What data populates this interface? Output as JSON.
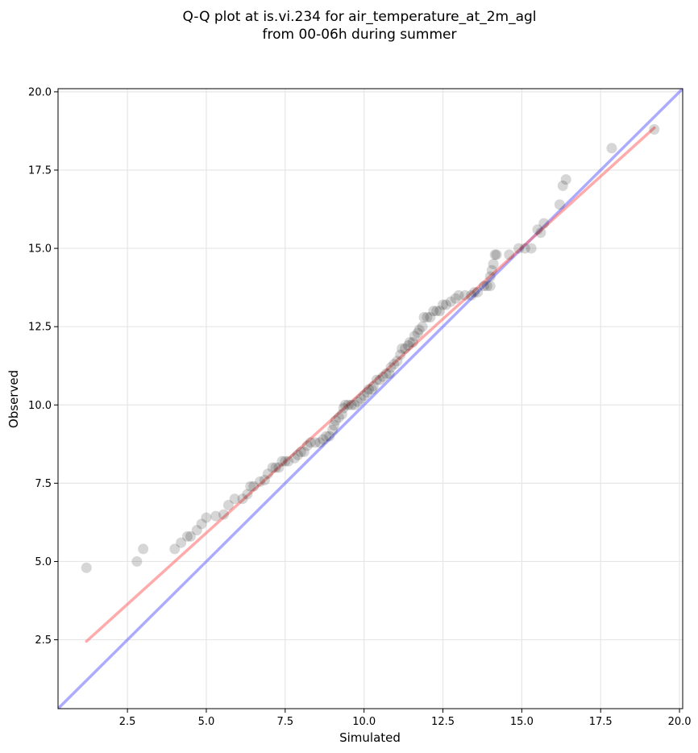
{
  "chart_data": {
    "type": "scatter",
    "title": [
      "Q-Q plot at is.vi.234 for air_temperature_at_2m_agl",
      "from 00-06h during summer"
    ],
    "xlabel": "Simulated",
    "ylabel": "Observed",
    "xlim": [
      0.3,
      20.1
    ],
    "ylim": [
      0.3,
      20.1
    ],
    "xticks": [
      2.5,
      5.0,
      7.5,
      10.0,
      12.5,
      15.0,
      17.5,
      20.0
    ],
    "yticks": [
      2.5,
      5.0,
      7.5,
      10.0,
      12.5,
      15.0,
      17.5,
      20.0
    ],
    "xtick_labels": [
      "2.5",
      "5.0",
      "7.5",
      "10.0",
      "12.5",
      "15.0",
      "17.5",
      "20.0"
    ],
    "ytick_labels": [
      "2.5",
      "5.0",
      "7.5",
      "10.0",
      "12.5",
      "15.0",
      "17.5",
      "20.0"
    ],
    "grid": true,
    "colors": {
      "points": "#000000",
      "fit_line": "#ff6666",
      "identity_line": "#6666ff",
      "grid": "#e6e6e6"
    },
    "fit_line": {
      "x": [
        1.2,
        19.2
      ],
      "y": [
        2.45,
        18.85
      ]
    },
    "identity_line": {
      "x": [
        0.3,
        20.1
      ],
      "y": [
        0.3,
        20.1
      ]
    },
    "points": [
      [
        1.2,
        4.8
      ],
      [
        2.8,
        5.0
      ],
      [
        3.0,
        5.4
      ],
      [
        4.0,
        5.4
      ],
      [
        4.2,
        5.6
      ],
      [
        4.4,
        5.8
      ],
      [
        4.5,
        5.8
      ],
      [
        4.7,
        6.0
      ],
      [
        4.85,
        6.2
      ],
      [
        5.0,
        6.4
      ],
      [
        5.3,
        6.45
      ],
      [
        5.55,
        6.5
      ],
      [
        5.7,
        6.8
      ],
      [
        5.9,
        7.0
      ],
      [
        6.15,
        7.0
      ],
      [
        6.3,
        7.15
      ],
      [
        6.4,
        7.4
      ],
      [
        6.5,
        7.4
      ],
      [
        6.7,
        7.55
      ],
      [
        6.85,
        7.6
      ],
      [
        6.95,
        7.8
      ],
      [
        7.1,
        8.0
      ],
      [
        7.2,
        8.0
      ],
      [
        7.3,
        8.0
      ],
      [
        7.4,
        8.2
      ],
      [
        7.5,
        8.2
      ],
      [
        7.6,
        8.2
      ],
      [
        7.8,
        8.3
      ],
      [
        7.9,
        8.4
      ],
      [
        8.0,
        8.5
      ],
      [
        8.1,
        8.5
      ],
      [
        8.2,
        8.7
      ],
      [
        8.3,
        8.8
      ],
      [
        8.45,
        8.8
      ],
      [
        8.6,
        8.8
      ],
      [
        8.7,
        8.9
      ],
      [
        8.8,
        9.0
      ],
      [
        8.9,
        9.0
      ],
      [
        9.0,
        9.2
      ],
      [
        9.05,
        9.35
      ],
      [
        9.1,
        9.5
      ],
      [
        9.2,
        9.6
      ],
      [
        9.3,
        9.7
      ],
      [
        9.35,
        9.9
      ],
      [
        9.4,
        10.0
      ],
      [
        9.5,
        10.0
      ],
      [
        9.6,
        10.0
      ],
      [
        9.7,
        10.0
      ],
      [
        9.8,
        10.1
      ],
      [
        9.9,
        10.2
      ],
      [
        10.0,
        10.3
      ],
      [
        10.1,
        10.4
      ],
      [
        10.15,
        10.5
      ],
      [
        10.25,
        10.5
      ],
      [
        10.3,
        10.6
      ],
      [
        10.4,
        10.8
      ],
      [
        10.5,
        10.8
      ],
      [
        10.6,
        10.9
      ],
      [
        10.7,
        11.0
      ],
      [
        10.8,
        11.0
      ],
      [
        10.85,
        11.2
      ],
      [
        10.95,
        11.3
      ],
      [
        11.05,
        11.4
      ],
      [
        11.15,
        11.6
      ],
      [
        11.2,
        11.8
      ],
      [
        11.3,
        11.8
      ],
      [
        11.4,
        11.9
      ],
      [
        11.45,
        12.0
      ],
      [
        11.55,
        12.0
      ],
      [
        11.6,
        12.2
      ],
      [
        11.7,
        12.3
      ],
      [
        11.75,
        12.4
      ],
      [
        11.85,
        12.5
      ],
      [
        11.9,
        12.8
      ],
      [
        12.0,
        12.8
      ],
      [
        12.1,
        12.8
      ],
      [
        12.2,
        13.0
      ],
      [
        12.3,
        13.0
      ],
      [
        12.4,
        13.0
      ],
      [
        12.5,
        13.2
      ],
      [
        12.6,
        13.2
      ],
      [
        12.75,
        13.3
      ],
      [
        12.9,
        13.4
      ],
      [
        13.0,
        13.5
      ],
      [
        13.2,
        13.5
      ],
      [
        13.4,
        13.5
      ],
      [
        13.5,
        13.6
      ],
      [
        13.6,
        13.6
      ],
      [
        13.8,
        13.8
      ],
      [
        13.9,
        13.8
      ],
      [
        14.0,
        13.8
      ],
      [
        14.0,
        14.1
      ],
      [
        14.05,
        14.3
      ],
      [
        14.1,
        14.5
      ],
      [
        14.15,
        14.8
      ],
      [
        14.2,
        14.8
      ],
      [
        14.6,
        14.8
      ],
      [
        14.9,
        15.0
      ],
      [
        15.1,
        15.0
      ],
      [
        15.3,
        15.0
      ],
      [
        15.5,
        15.6
      ],
      [
        15.6,
        15.5
      ],
      [
        15.7,
        15.8
      ],
      [
        16.2,
        16.4
      ],
      [
        16.3,
        17.0
      ],
      [
        16.4,
        17.2
      ],
      [
        17.85,
        18.2
      ],
      [
        19.2,
        18.8
      ]
    ]
  }
}
